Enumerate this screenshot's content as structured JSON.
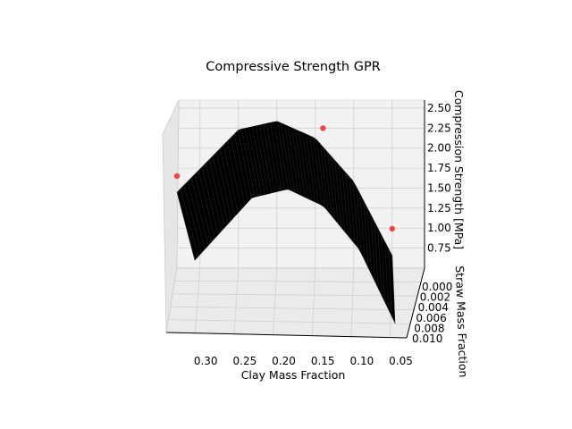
{
  "chart_data": {
    "type": "surface3d",
    "title": "Compressive Strength GPR",
    "xlabel": "Clay Mass Fraction",
    "ylabel": "Straw Mass Fraction",
    "zlabel": "Compression Strength [MPa]",
    "x_ticks": [
      "0.30",
      "0.25",
      "0.20",
      "0.15",
      "0.10",
      "0.05"
    ],
    "y_ticks": [
      "0.000",
      "0.002",
      "0.004",
      "0.006",
      "0.008",
      "0.010"
    ],
    "z_ticks": [
      "0.75",
      "1.00",
      "1.25",
      "1.50",
      "1.75",
      "2.00",
      "2.25",
      "2.50"
    ],
    "xlim": [
      0.03,
      0.33
    ],
    "ylim": [
      0.0,
      0.01
    ],
    "zlim": [
      0.5,
      2.6
    ],
    "grid": true,
    "surface": {
      "x_range": [
        0.05,
        0.33
      ],
      "y_range": [
        0.0,
        0.01
      ],
      "z_at_x": [
        {
          "x": 0.05,
          "z": 0.62
        },
        {
          "x": 0.1,
          "z": 1.55
        },
        {
          "x": 0.15,
          "z": 2.1
        },
        {
          "x": 0.2,
          "z": 2.32
        },
        {
          "x": 0.25,
          "z": 2.22
        },
        {
          "x": 0.33,
          "z": 1.45
        }
      ],
      "color": "#000000"
    },
    "points": [
      {
        "x": 0.33,
        "y": 0.0,
        "z": 1.65
      },
      {
        "x": 0.14,
        "y": 0.0,
        "z": 2.22
      },
      {
        "x": 0.05,
        "y": 0.0,
        "z": 0.95
      }
    ],
    "point_color": "#ee3333"
  }
}
